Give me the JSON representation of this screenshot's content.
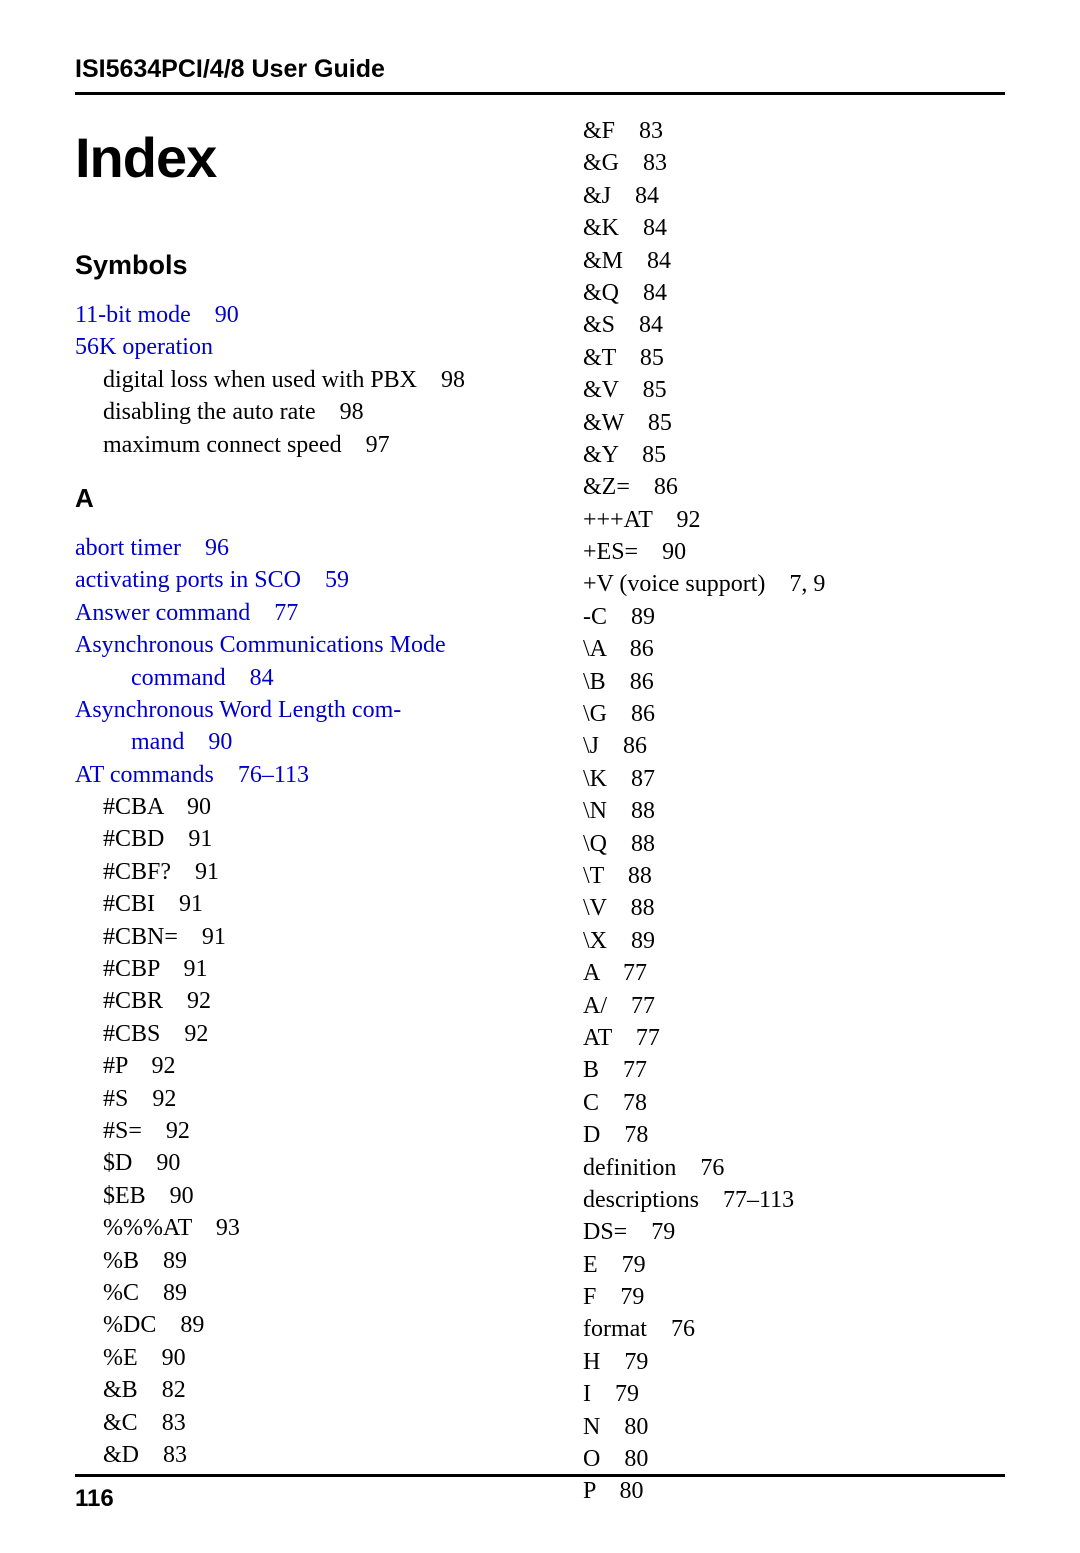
{
  "header": {
    "title": "ISI5634PCI/4/8 User Guide"
  },
  "index": {
    "title": "Index",
    "page_number": "116",
    "colors": {
      "link": "#0000cc",
      "text": "#000000",
      "rule": "#000000",
      "background": "#ffffff"
    },
    "typography": {
      "header_font": "Arial",
      "body_font": "Times New Roman",
      "index_title_size_pt": 42,
      "section_head_size_pt": 20,
      "entry_size_pt": 18
    },
    "left_column": [
      {
        "type": "section",
        "text": "Symbols"
      },
      {
        "type": "entry",
        "link": true,
        "indent": 0,
        "term": "11-bit mode",
        "pages": "90"
      },
      {
        "type": "entry",
        "link": true,
        "indent": 0,
        "term": "56K operation",
        "pages": ""
      },
      {
        "type": "entry",
        "link": false,
        "indent": 1,
        "term": "digital loss when used with PBX",
        "pages": "98"
      },
      {
        "type": "entry",
        "link": false,
        "indent": 1,
        "term": "disabling the auto rate",
        "pages": "98"
      },
      {
        "type": "entry",
        "link": false,
        "indent": 1,
        "term": "maximum connect speed",
        "pages": "97"
      },
      {
        "type": "letter",
        "text": "A"
      },
      {
        "type": "entry",
        "link": true,
        "indent": 0,
        "term": "abort timer",
        "pages": "96"
      },
      {
        "type": "entry",
        "link": true,
        "indent": 0,
        "term": "activating ports in SCO",
        "pages": "59"
      },
      {
        "type": "entry",
        "link": true,
        "indent": 0,
        "term": "Answer command",
        "pages": "77"
      },
      {
        "type": "entry",
        "link": true,
        "indent": 0,
        "term": "Asynchronous Communications Mode",
        "pages": ""
      },
      {
        "type": "entry",
        "link": true,
        "indent": 2,
        "term": "command",
        "pages": "84"
      },
      {
        "type": "entry",
        "link": true,
        "indent": 0,
        "term": "Asynchronous Word Length com-",
        "pages": ""
      },
      {
        "type": "entry",
        "link": true,
        "indent": 2,
        "term": "mand",
        "pages": "90"
      },
      {
        "type": "entry",
        "link": true,
        "indent": 0,
        "term": "AT commands",
        "pages": "76–113"
      },
      {
        "type": "entry",
        "link": false,
        "indent": 1,
        "term": "#CBA",
        "pages": "90"
      },
      {
        "type": "entry",
        "link": false,
        "indent": 1,
        "term": "#CBD",
        "pages": "91"
      },
      {
        "type": "entry",
        "link": false,
        "indent": 1,
        "term": "#CBF?",
        "pages": "91"
      },
      {
        "type": "entry",
        "link": false,
        "indent": 1,
        "term": "#CBI",
        "pages": "91"
      },
      {
        "type": "entry",
        "link": false,
        "indent": 1,
        "term": "#CBN=",
        "pages": "91"
      },
      {
        "type": "entry",
        "link": false,
        "indent": 1,
        "term": "#CBP",
        "pages": "91"
      },
      {
        "type": "entry",
        "link": false,
        "indent": 1,
        "term": "#CBR",
        "pages": "92"
      },
      {
        "type": "entry",
        "link": false,
        "indent": 1,
        "term": "#CBS",
        "pages": "92"
      },
      {
        "type": "entry",
        "link": false,
        "indent": 1,
        "term": "#P",
        "pages": "92"
      },
      {
        "type": "entry",
        "link": false,
        "indent": 1,
        "term": "#S",
        "pages": "92"
      },
      {
        "type": "entry",
        "link": false,
        "indent": 1,
        "term": "#S=",
        "pages": "92"
      },
      {
        "type": "entry",
        "link": false,
        "indent": 1,
        "term": "$D",
        "pages": "90"
      },
      {
        "type": "entry",
        "link": false,
        "indent": 1,
        "term": "$EB",
        "pages": "90"
      },
      {
        "type": "entry",
        "link": false,
        "indent": 1,
        "term": "%%%AT",
        "pages": "93"
      },
      {
        "type": "entry",
        "link": false,
        "indent": 1,
        "term": "%B",
        "pages": "89"
      },
      {
        "type": "entry",
        "link": false,
        "indent": 1,
        "term": "%C",
        "pages": "89"
      },
      {
        "type": "entry",
        "link": false,
        "indent": 1,
        "term": "%DC",
        "pages": "89"
      },
      {
        "type": "entry",
        "link": false,
        "indent": 1,
        "term": "%E",
        "pages": "90"
      },
      {
        "type": "entry",
        "link": false,
        "indent": 1,
        "term": "&B",
        "pages": "82"
      },
      {
        "type": "entry",
        "link": false,
        "indent": 1,
        "term": "&C",
        "pages": "83"
      },
      {
        "type": "entry",
        "link": false,
        "indent": 1,
        "term": "&D",
        "pages": "83"
      }
    ],
    "right_column": [
      {
        "type": "entry",
        "link": false,
        "indent": 1,
        "term": "&F",
        "pages": "83"
      },
      {
        "type": "entry",
        "link": false,
        "indent": 1,
        "term": "&G",
        "pages": "83"
      },
      {
        "type": "entry",
        "link": false,
        "indent": 1,
        "term": "&J",
        "pages": "84"
      },
      {
        "type": "entry",
        "link": false,
        "indent": 1,
        "term": "&K",
        "pages": "84"
      },
      {
        "type": "entry",
        "link": false,
        "indent": 1,
        "term": "&M",
        "pages": "84"
      },
      {
        "type": "entry",
        "link": false,
        "indent": 1,
        "term": "&Q",
        "pages": "84"
      },
      {
        "type": "entry",
        "link": false,
        "indent": 1,
        "term": "&S",
        "pages": "84"
      },
      {
        "type": "entry",
        "link": false,
        "indent": 1,
        "term": "&T",
        "pages": "85"
      },
      {
        "type": "entry",
        "link": false,
        "indent": 1,
        "term": "&V",
        "pages": "85"
      },
      {
        "type": "entry",
        "link": false,
        "indent": 1,
        "term": "&W",
        "pages": "85"
      },
      {
        "type": "entry",
        "link": false,
        "indent": 1,
        "term": "&Y",
        "pages": "85"
      },
      {
        "type": "entry",
        "link": false,
        "indent": 1,
        "term": "&Z=",
        "pages": "86"
      },
      {
        "type": "entry",
        "link": false,
        "indent": 1,
        "term": "+++AT",
        "pages": "92"
      },
      {
        "type": "entry",
        "link": false,
        "indent": 1,
        "term": "+ES=",
        "pages": "90"
      },
      {
        "type": "entry",
        "link": false,
        "indent": 1,
        "term": "+V (voice support)",
        "pages": "7, 9"
      },
      {
        "type": "entry",
        "link": false,
        "indent": 1,
        "term": "-C",
        "pages": "89"
      },
      {
        "type": "entry",
        "link": false,
        "indent": 1,
        "term": "\\A",
        "pages": "86"
      },
      {
        "type": "entry",
        "link": false,
        "indent": 1,
        "term": "\\B",
        "pages": "86"
      },
      {
        "type": "entry",
        "link": false,
        "indent": 1,
        "term": "\\G",
        "pages": "86"
      },
      {
        "type": "entry",
        "link": false,
        "indent": 1,
        "term": "\\J",
        "pages": "86"
      },
      {
        "type": "entry",
        "link": false,
        "indent": 1,
        "term": "\\K",
        "pages": "87"
      },
      {
        "type": "entry",
        "link": false,
        "indent": 1,
        "term": "\\N",
        "pages": "88"
      },
      {
        "type": "entry",
        "link": false,
        "indent": 1,
        "term": "\\Q",
        "pages": "88"
      },
      {
        "type": "entry",
        "link": false,
        "indent": 1,
        "term": "\\T",
        "pages": "88"
      },
      {
        "type": "entry",
        "link": false,
        "indent": 1,
        "term": "\\V",
        "pages": "88"
      },
      {
        "type": "entry",
        "link": false,
        "indent": 1,
        "term": "\\X",
        "pages": "89"
      },
      {
        "type": "entry",
        "link": false,
        "indent": 1,
        "term": "A",
        "pages": "77"
      },
      {
        "type": "entry",
        "link": false,
        "indent": 1,
        "term": "A/",
        "pages": "77"
      },
      {
        "type": "entry",
        "link": false,
        "indent": 1,
        "term": "AT",
        "pages": "77"
      },
      {
        "type": "entry",
        "link": false,
        "indent": 1,
        "term": "B",
        "pages": "77"
      },
      {
        "type": "entry",
        "link": false,
        "indent": 1,
        "term": "C",
        "pages": "78"
      },
      {
        "type": "entry",
        "link": false,
        "indent": 1,
        "term": "D",
        "pages": "78"
      },
      {
        "type": "entry",
        "link": false,
        "indent": 1,
        "term": "definition",
        "pages": "76"
      },
      {
        "type": "entry",
        "link": false,
        "indent": 1,
        "term": "descriptions",
        "pages": "77–113"
      },
      {
        "type": "entry",
        "link": false,
        "indent": 1,
        "term": "DS=",
        "pages": "79"
      },
      {
        "type": "entry",
        "link": false,
        "indent": 1,
        "term": "E",
        "pages": "79"
      },
      {
        "type": "entry",
        "link": false,
        "indent": 1,
        "term": "F",
        "pages": "79"
      },
      {
        "type": "entry",
        "link": false,
        "indent": 1,
        "term": "format",
        "pages": "76"
      },
      {
        "type": "entry",
        "link": false,
        "indent": 1,
        "term": "H",
        "pages": "79"
      },
      {
        "type": "entry",
        "link": false,
        "indent": 1,
        "term": "I",
        "pages": "79"
      },
      {
        "type": "entry",
        "link": false,
        "indent": 1,
        "term": "N",
        "pages": "80"
      },
      {
        "type": "entry",
        "link": false,
        "indent": 1,
        "term": "O",
        "pages": "80"
      },
      {
        "type": "entry",
        "link": false,
        "indent": 1,
        "term": "P",
        "pages": "80"
      }
    ]
  }
}
